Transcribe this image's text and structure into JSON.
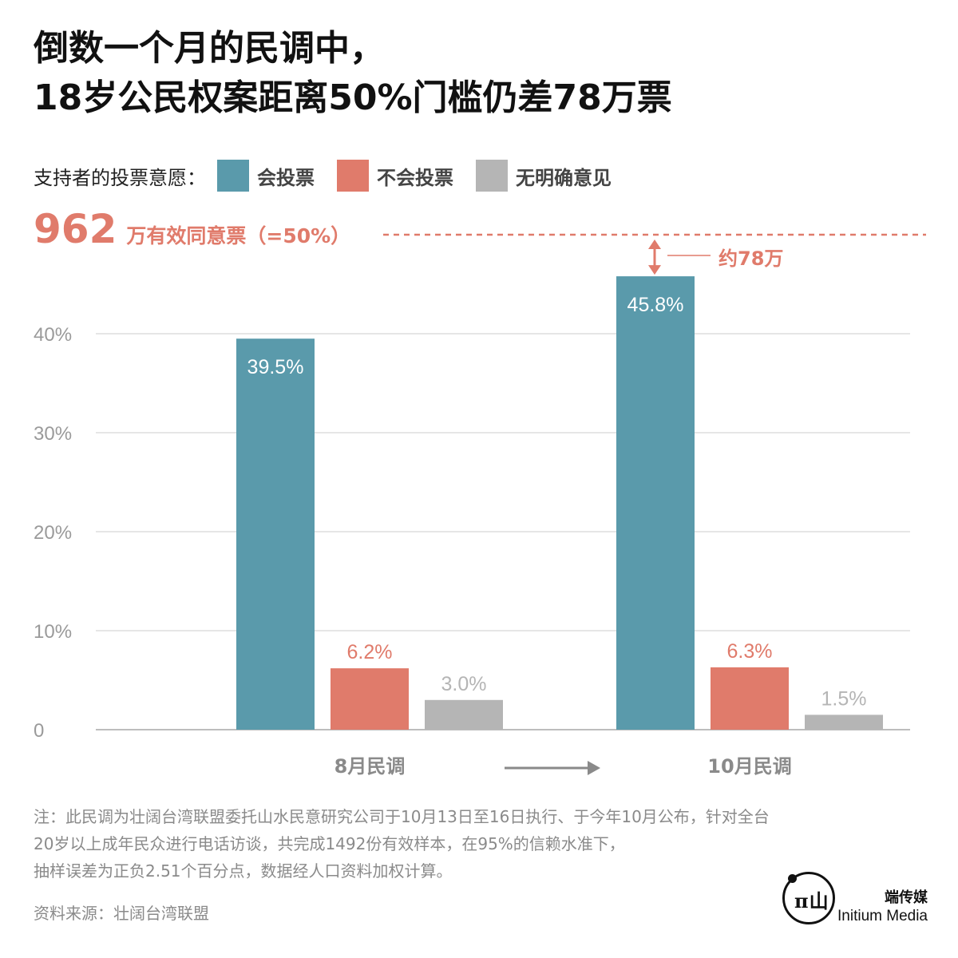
{
  "title": {
    "line1": "倒数一个月的民调中，",
    "line2": "18岁公民权案距离50%门槛仍差78万票"
  },
  "legend": {
    "lead": "支持者的投票意愿：",
    "items": [
      {
        "label": "会投票",
        "color": "#5a9aab"
      },
      {
        "label": "不会投票",
        "color": "#e07b6b"
      },
      {
        "label": "无明确意见",
        "color": "#b5b5b5"
      }
    ]
  },
  "threshold": {
    "number": "962",
    "label": "万有效同意票（=50%）",
    "color": "#e07b6b"
  },
  "difference_label": "约78万",
  "chart_data": {
    "type": "bar",
    "categories": [
      "8月民调",
      "10月民调"
    ],
    "series": [
      {
        "name": "会投票",
        "values": [
          39.5,
          45.8
        ],
        "labels": [
          "39.5%",
          "45.8%"
        ],
        "color": "#5a9aab"
      },
      {
        "name": "不会投票",
        "values": [
          6.2,
          6.3
        ],
        "labels": [
          "6.2%",
          "6.3%"
        ],
        "color": "#e07b6b"
      },
      {
        "name": "无明确意见",
        "values": [
          3.0,
          1.5
        ],
        "labels": [
          "3.0%",
          "1.5%"
        ],
        "color": "#b5b5b5"
      }
    ],
    "y_ticks": [
      {
        "value": 0,
        "label": "0"
      },
      {
        "value": 10,
        "label": "10%"
      },
      {
        "value": 20,
        "label": "20%"
      },
      {
        "value": 30,
        "label": "30%"
      },
      {
        "value": 40,
        "label": "40%"
      }
    ],
    "ylim": [
      0,
      50
    ],
    "threshold_value": 50,
    "grid": true,
    "legend_position": "top-left"
  },
  "note": {
    "line1": "注：此民调为壮阔台湾联盟委托山水民意研究公司于10月13日至16日执行、于今年10月公布，针对全台",
    "line2": "20岁以上成年民众进行电话访谈，共完成1492份有效样本，在95%的信赖水准下，",
    "line3": "抽样误差为正负2.51个百分点，数据经人口资料加权计算。"
  },
  "source": "资料来源：壮阔台湾联盟",
  "brand": {
    "cn": "端传媒",
    "en": "Initium Media",
    "logo_glyph": "π山"
  }
}
